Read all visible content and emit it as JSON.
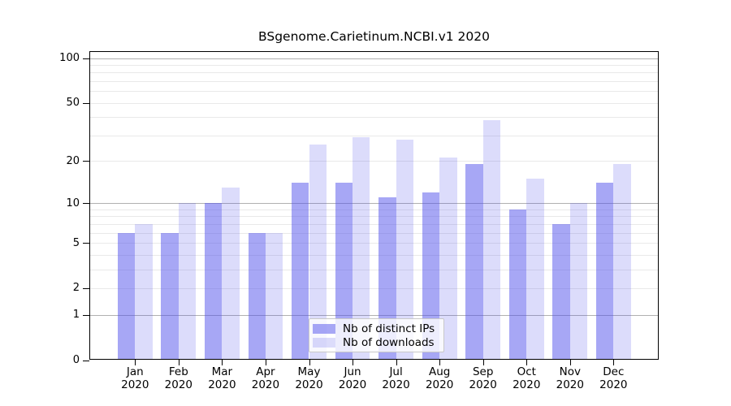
{
  "title": "BSgenome.Carietinum.NCBI.v1 2020",
  "colors": {
    "distinct_ips": "rgba(80,80,235,0.50)",
    "downloads": "rgba(80,80,235,0.20)",
    "major_gridline": "#b0b0b0",
    "minor_gridline": "#e9e9e9",
    "axis": "#000000",
    "legend_bg": "rgba(255,255,255,0.8)",
    "legend_border": "#c9c9c9"
  },
  "legend": {
    "items": [
      {
        "label": "Nb of distinct IPs",
        "color_key": "distinct_ips"
      },
      {
        "label": "Nb of downloads",
        "color_key": "downloads"
      }
    ]
  },
  "chart_data": {
    "type": "bar",
    "title": "BSgenome.Carietinum.NCBI.v1 2020",
    "xlabel": "",
    "ylabel": "",
    "scale": "log1p",
    "ylim": [
      0,
      100
    ],
    "grid": true,
    "legend_position": "bottom-center-inside",
    "categories": [
      "Jan 2020",
      "Feb 2020",
      "Mar 2020",
      "Apr 2020",
      "May 2020",
      "Jun 2020",
      "Jul 2020",
      "Aug 2020",
      "Sep 2020",
      "Oct 2020",
      "Nov 2020",
      "Dec 2020"
    ],
    "series": [
      {
        "name": "Nb of distinct IPs",
        "values": [
          6,
          6,
          10,
          6,
          14,
          14,
          11,
          12,
          19,
          9,
          7,
          14
        ]
      },
      {
        "name": "Nb of downloads",
        "values": [
          7,
          10,
          13,
          6,
          26,
          29,
          28,
          21,
          38,
          15,
          10,
          19
        ]
      }
    ],
    "y_axis": {
      "tick_values": [
        0,
        1,
        2,
        5,
        10,
        20,
        50,
        100
      ],
      "tick_labels": [
        "0",
        "1",
        "2",
        "5",
        "10",
        "20",
        "50",
        "100"
      ],
      "major_gridlines": [
        1,
        10,
        100
      ],
      "minor_gridlines": [
        2,
        3,
        4,
        5,
        6,
        7,
        8,
        9,
        20,
        30,
        40,
        50,
        60,
        70,
        80,
        90
      ]
    }
  }
}
